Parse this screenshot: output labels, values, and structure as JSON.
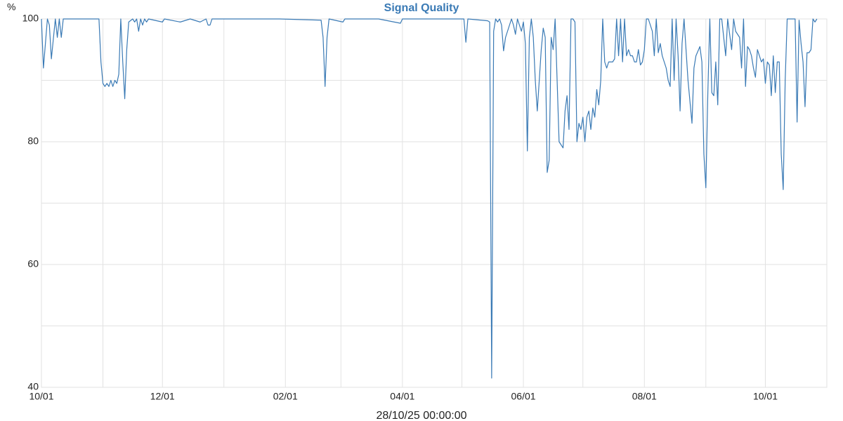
{
  "chart_data": {
    "type": "line",
    "title": "Signal Quality",
    "y_label": "%",
    "x_label": "28/10/25 00:00:00",
    "color": "#3a7ab5",
    "grid": true,
    "xlim": [
      0,
      396
    ],
    "ylim": [
      40,
      100
    ],
    "yticks": [
      40,
      60,
      80,
      100
    ],
    "minor_yticks": [
      50,
      70,
      90
    ],
    "xticks": [
      {
        "value": 0,
        "label": "10/01"
      },
      {
        "value": 61,
        "label": "12/01"
      },
      {
        "value": 123,
        "label": "02/01"
      },
      {
        "value": 182,
        "label": "04/01"
      },
      {
        "value": 243,
        "label": "06/01"
      },
      {
        "value": 304,
        "label": "08/01"
      },
      {
        "value": 365,
        "label": "10/01"
      }
    ],
    "minor_xticks": [
      31,
      92,
      151,
      212,
      273,
      335
    ],
    "x": [
      0,
      1,
      3,
      4,
      5,
      7,
      8,
      9,
      10,
      11,
      20,
      29,
      30,
      31,
      32,
      33,
      34,
      35,
      36,
      37,
      38,
      39,
      40,
      41,
      42,
      43,
      44,
      46,
      47,
      48,
      49,
      50,
      51,
      52,
      53,
      54,
      61,
      62,
      70,
      75,
      80,
      83,
      84,
      85,
      86,
      100,
      120,
      141,
      142,
      143,
      144,
      145,
      152,
      153,
      170,
      181,
      182,
      213,
      214,
      215,
      225,
      226,
      227,
      228,
      229,
      230,
      231,
      232,
      233,
      234,
      235,
      236,
      237,
      238,
      239,
      240,
      241,
      242,
      243,
      244,
      245,
      246,
      247,
      248,
      249,
      250,
      251,
      252,
      253,
      254,
      255,
      256,
      257,
      258,
      259,
      260,
      261,
      262,
      263,
      264,
      265,
      266,
      267,
      268,
      269,
      270,
      271,
      272,
      273,
      274,
      275,
      276,
      277,
      278,
      279,
      280,
      281,
      282,
      283,
      284,
      285,
      286,
      287,
      288,
      289,
      290,
      291,
      292,
      293,
      294,
      295,
      296,
      297,
      298,
      299,
      300,
      301,
      302,
      303,
      304,
      305,
      306,
      307,
      308,
      309,
      310,
      311,
      312,
      313,
      314,
      315,
      316,
      317,
      318,
      319,
      320,
      321,
      322,
      323,
      324,
      326,
      328,
      329,
      330,
      332,
      333,
      334,
      335,
      336,
      337,
      338,
      339,
      340,
      341,
      342,
      343,
      344,
      345,
      346,
      348,
      349,
      350,
      352,
      353,
      354,
      355,
      356,
      357,
      358,
      359,
      360,
      361,
      362,
      363,
      364,
      365,
      366,
      367,
      368,
      369,
      370,
      371,
      372,
      373,
      374,
      375,
      376,
      378,
      379,
      380,
      381,
      382,
      383,
      384,
      385,
      386,
      387,
      388,
      389,
      390,
      391
    ],
    "values": [
      100,
      92,
      100,
      99,
      93.5,
      100,
      97,
      100,
      97,
      100,
      100,
      100,
      93,
      89.5,
      89,
      89.5,
      89,
      90,
      89,
      90,
      89.5,
      91,
      100,
      93,
      87,
      95,
      99.5,
      100,
      99.5,
      100,
      98,
      100,
      99,
      100,
      99.5,
      100,
      99.5,
      100,
      99.5,
      100,
      99.5,
      100,
      99,
      99,
      100,
      100,
      100,
      99.8,
      97,
      89,
      97,
      100,
      99.5,
      100,
      100,
      99.3,
      100,
      100,
      96.2,
      100,
      99.7,
      99.5,
      41.5,
      98,
      100,
      99.5,
      100,
      99,
      94.8,
      97,
      98,
      99,
      100,
      99,
      97.5,
      100,
      99,
      98,
      99.5,
      96,
      78.5,
      97,
      100,
      97,
      90,
      85,
      90,
      95,
      98.5,
      97,
      75,
      77,
      97,
      95,
      100,
      90,
      80,
      79.5,
      79,
      85,
      87.5,
      82,
      100,
      100,
      99.5,
      80,
      83,
      82,
      84,
      80,
      84,
      85,
      82,
      85.5,
      84,
      88.5,
      86,
      90,
      100,
      93,
      92,
      93,
      93,
      93,
      93.5,
      100,
      94,
      100,
      93,
      100,
      94,
      95,
      94,
      94,
      93,
      93,
      95,
      92.5,
      93,
      95,
      100,
      100,
      99,
      98,
      94,
      100,
      94.5,
      96,
      94,
      93,
      92,
      90,
      89,
      100,
      90,
      100,
      94,
      85,
      96,
      100,
      90,
      83,
      92,
      94,
      95.5,
      93,
      78,
      72.5,
      88,
      100,
      88,
      87.5,
      93,
      86,
      100,
      100,
      97,
      94,
      100,
      95,
      100,
      98,
      97,
      92,
      100,
      89,
      95.5,
      95,
      94,
      92,
      90.5,
      95,
      94,
      93,
      93.5,
      89.5,
      93,
      92.5,
      87.5,
      94,
      88,
      93,
      93,
      78,
      72.2,
      90,
      100,
      100,
      100,
      100,
      83.2,
      99.8,
      96,
      93,
      85.7,
      94.5,
      94.5,
      95,
      100,
      99.5,
      100
    ]
  }
}
